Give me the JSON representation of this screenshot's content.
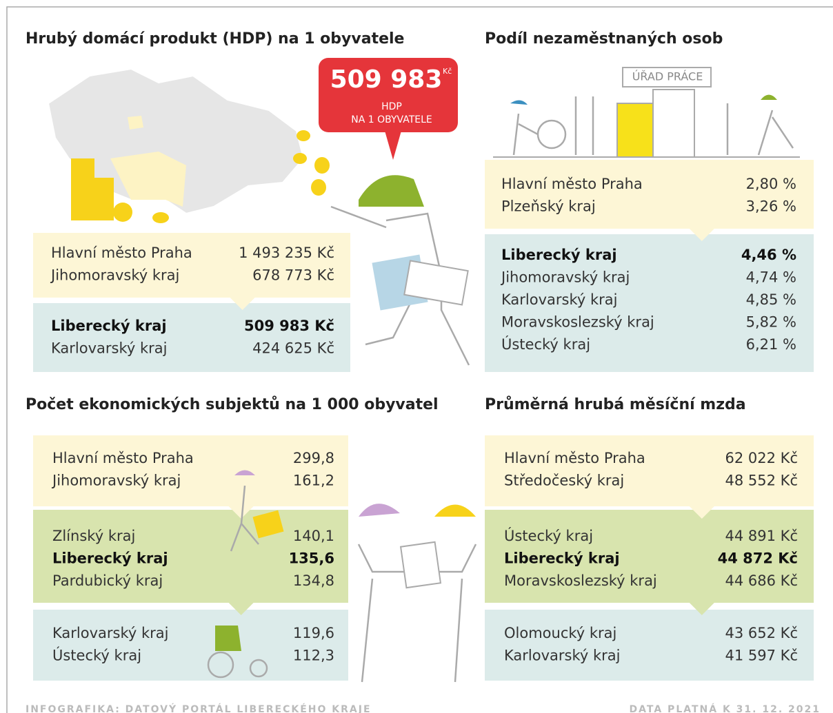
{
  "sections": [
    {
      "title": "Hrubý domácí produkt (HDP) na 1 obyvatele",
      "callout": {
        "value": "509 983",
        "unit": "Kč",
        "lines": [
          "HDP",
          "NA 1 OBYVATELE"
        ]
      },
      "groups": [
        {
          "color": "#fdf6d6",
          "rows": [
            {
              "name": "Hlavní město Praha",
              "value": "1 493 235 Kč"
            },
            {
              "name": "Jihomoravský kraj",
              "value": "678 773 Kč"
            }
          ]
        },
        {
          "color": "#dcebea",
          "rows": [
            {
              "name": "Liberecký kraj",
              "value": "509 983 Kč",
              "highlight": true
            },
            {
              "name": "Karlovarský kraj",
              "value": "424 625 Kč"
            }
          ]
        }
      ]
    },
    {
      "title": "Podíl nezaměstnaných osob",
      "sign": "ÚŘAD PRÁCE",
      "groups": [
        {
          "color": "#fdf6d6",
          "rows": [
            {
              "name": "Hlavní město Praha",
              "value": "2,80 %"
            },
            {
              "name": "Plzeňský kraj",
              "value": "3,26 %"
            }
          ]
        },
        {
          "color": "#dcebea",
          "rows": [
            {
              "name": "Liberecký kraj",
              "value": "4,46 %",
              "highlight": true
            },
            {
              "name": "Jihomoravský kraj",
              "value": "4,74 %"
            },
            {
              "name": "Karlovarský kraj",
              "value": "4,85 %"
            },
            {
              "name": "Moravskoslezský kraj",
              "value": "5,82 %"
            },
            {
              "name": "Ústecký kraj",
              "value": "6,21 %"
            }
          ]
        }
      ]
    },
    {
      "title": "Počet ekonomických subjektů na 1 000 obyvatel",
      "groups": [
        {
          "color": "#fdf6d6",
          "rows": [
            {
              "name": "Hlavní město Praha",
              "value": "299,8"
            },
            {
              "name": "Jihomoravský kraj",
              "value": "161,2"
            }
          ]
        },
        {
          "color": "#d8e4ae",
          "rows": [
            {
              "name": "Zlínský kraj",
              "value": "140,1"
            },
            {
              "name": "Liberecký kraj",
              "value": "135,6",
              "highlight": true
            },
            {
              "name": "Pardubický kraj",
              "value": "134,8"
            }
          ]
        },
        {
          "color": "#dcebea",
          "rows": [
            {
              "name": "Karlovarský kraj",
              "value": "119,6"
            },
            {
              "name": "Ústecký kraj",
              "value": "112,3"
            }
          ]
        }
      ]
    },
    {
      "title": "Průměrná hrubá měsíční mzda",
      "groups": [
        {
          "color": "#fdf6d6",
          "rows": [
            {
              "name": "Hlavní město Praha",
              "value": "62 022 Kč"
            },
            {
              "name": "Středočeský kraj",
              "value": "48 552 Kč"
            }
          ]
        },
        {
          "color": "#d8e4ae",
          "rows": [
            {
              "name": "Ústecký kraj",
              "value": "44 891 Kč"
            },
            {
              "name": "Liberecký kraj",
              "value": "44 872 Kč",
              "highlight": true
            },
            {
              "name": "Moravskoslezský kraj",
              "value": "44 686 Kč"
            }
          ]
        },
        {
          "color": "#dcebea",
          "rows": [
            {
              "name": "Olomoucký kraj",
              "value": "43 652 Kč"
            },
            {
              "name": "Karlovarský kraj",
              "value": "41 597 Kč"
            }
          ]
        }
      ]
    }
  ],
  "footer": {
    "left": "INFOGRAFIKA: DATOVÝ PORTÁL LIBERECKÉHO KRAJE",
    "right": "DATA PLATNÁ K 31. 12. 2021"
  }
}
